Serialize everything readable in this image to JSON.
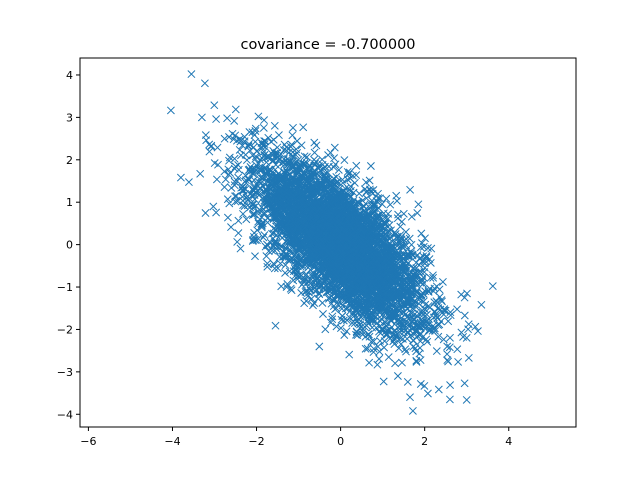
{
  "chart_data": {
    "type": "scatter",
    "title": "covariance = -0.700000",
    "xlabel": "",
    "ylabel": "",
    "xlim": [
      -6.2,
      5.6
    ],
    "ylim": [
      -4.3,
      4.4
    ],
    "xticks": [
      -6,
      -4,
      -2,
      0,
      2,
      4
    ],
    "yticks": [
      -4,
      -3,
      -2,
      -1,
      0,
      1,
      2,
      3,
      4
    ],
    "xtick_labels": [
      "−6",
      "−4",
      "−2",
      "0",
      "2",
      "4"
    ],
    "ytick_labels": [
      "−4",
      "−3",
      "−2",
      "−1",
      "0",
      "1",
      "2",
      "3",
      "4"
    ],
    "grid": false,
    "marker": "x",
    "color": "#1f77b4",
    "distribution": {
      "mean": [
        0,
        0
      ],
      "covariance": [
        [
          1,
          -0.7
        ],
        [
          -0.7,
          1
        ]
      ],
      "n": 5000
    },
    "outliers": [
      {
        "x": -3.55,
        "y": 4.02
      },
      {
        "x": -3.3,
        "y": 3.0
      },
      {
        "x": -3.8,
        "y": 1.58
      },
      {
        "x": -2.7,
        "y": 2.98
      },
      {
        "x": 1.85,
        "y": 0.95
      },
      {
        "x": 3.35,
        "y": -1.42
      },
      {
        "x": 2.95,
        "y": -3.27
      },
      {
        "x": 3.0,
        "y": -3.66
      },
      {
        "x": 2.6,
        "y": -3.65
      },
      {
        "x": 1.72,
        "y": -3.92
      },
      {
        "x": 3.05,
        "y": -2.67
      },
      {
        "x": 2.95,
        "y": -1.25
      }
    ]
  }
}
